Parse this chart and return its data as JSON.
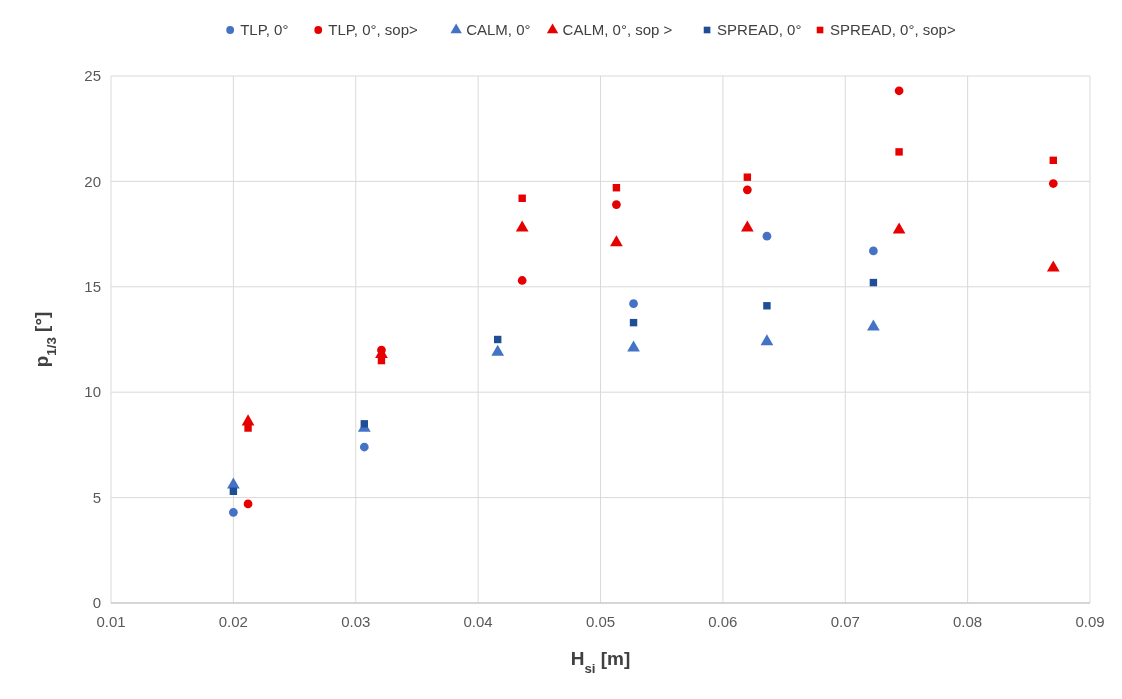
{
  "chart_data": {
    "type": "scatter",
    "xlabel": "H$_{si}$ [m]",
    "ylabel": "p$_{1/3}$ [°]",
    "xlim": [
      0.01,
      0.09
    ],
    "xticks": [
      0.01,
      0.02,
      0.03,
      0.04,
      0.05,
      0.06,
      0.07,
      0.08,
      0.09
    ],
    "ylim": [
      0,
      25
    ],
    "yticks": [
      0,
      5,
      10,
      15,
      20,
      25
    ],
    "grid": true,
    "legend": "top",
    "series": [
      {
        "name": "TLP, 0°",
        "color": "#4472c4",
        "marker": "circle",
        "x": [
          0.02,
          0.0307,
          0.0527,
          0.0636,
          0.0723
        ],
        "values": [
          4.3,
          7.4,
          14.2,
          17.4,
          16.7
        ]
      },
      {
        "name": "TLP, 0°, sop>",
        "color": "#e60000",
        "marker": "circle",
        "x": [
          0.0212,
          0.0321,
          0.0436,
          0.0513,
          0.062,
          0.0744,
          0.087
        ],
        "values": [
          4.7,
          12.0,
          15.3,
          18.9,
          19.6,
          24.3,
          19.9
        ]
      },
      {
        "name": "CALM, 0°",
        "color": "#4472c4",
        "marker": "triangle",
        "x": [
          0.02,
          0.0307,
          0.0416,
          0.0527,
          0.0636,
          0.0723
        ],
        "values": [
          5.6,
          8.3,
          11.9,
          12.1,
          12.4,
          13.1
        ]
      },
      {
        "name": "CALM, 0°, sop >",
        "color": "#e60000",
        "marker": "triangle",
        "x": [
          0.0212,
          0.0321,
          0.0436,
          0.0513,
          0.062,
          0.0744,
          0.087
        ],
        "values": [
          8.6,
          11.8,
          17.8,
          17.1,
          17.8,
          17.7,
          15.9
        ]
      },
      {
        "name": "SPREAD, 0°",
        "color": "#1f4e96",
        "marker": "square",
        "x": [
          0.02,
          0.0307,
          0.0416,
          0.0527,
          0.0636,
          0.0723
        ],
        "values": [
          5.3,
          8.5,
          12.5,
          13.3,
          14.1,
          15.2
        ]
      },
      {
        "name": "SPREAD, 0°, sop>",
        "color": "#e60000",
        "marker": "square",
        "x": [
          0.0212,
          0.0321,
          0.0436,
          0.0513,
          0.062,
          0.0744,
          0.087
        ],
        "values": [
          8.3,
          11.5,
          19.2,
          19.7,
          20.2,
          21.4,
          21.0
        ]
      }
    ]
  }
}
